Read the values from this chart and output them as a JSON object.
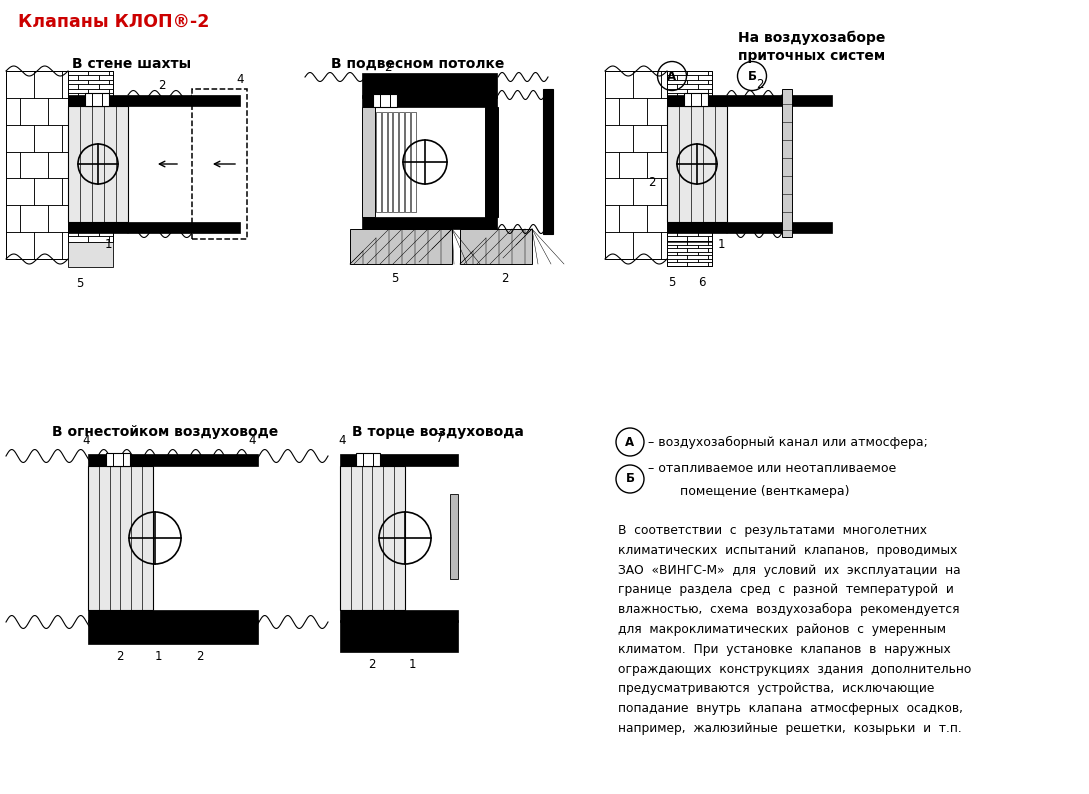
{
  "title": "Клапаны КЛОП®-2",
  "title_color": "#cc0000",
  "bg_color": "#ffffff",
  "legend_A_text": "– воздухозаборный канал или атмосфера;",
  "legend_B_line1": "– отапливаемое или неотапливаемое",
  "legend_B_line2": "   помещение (венткамера)",
  "body_text_lines": [
    "В  соответствии  с  результатами  многолетних",
    "климатических  испытаний  клапанов,  проводимых",
    "ЗАО  «ВИНГС-М»  для  условий  их  эксплуатации  на",
    "границе  раздела  сред  с  разной  температурой  и",
    "влажностью,  схема  воздухозабора  рекомендуется",
    "для  макроклиматических  районов  с  умеренным",
    "климатом.  При  установке  клапанов  в  наружных",
    "ограждающих  конструкциях  здания  дополнительно",
    "предусматриваются  устройства,  исключающие",
    "попадание  внутрь  клапана  атмосферных  осадков,",
    "например,  жалюзийные  решетки,  козырьки  и  т.п."
  ],
  "diag1_title": "В стене шахты",
  "diag2_title": "В подвесном потолке",
  "diag3_title_1": "На воздухозаборе",
  "diag3_title_2": "приточных систем",
  "diag4_title": "В огнестойком воздуховоде",
  "diag5_title": "В торце воздуховода"
}
